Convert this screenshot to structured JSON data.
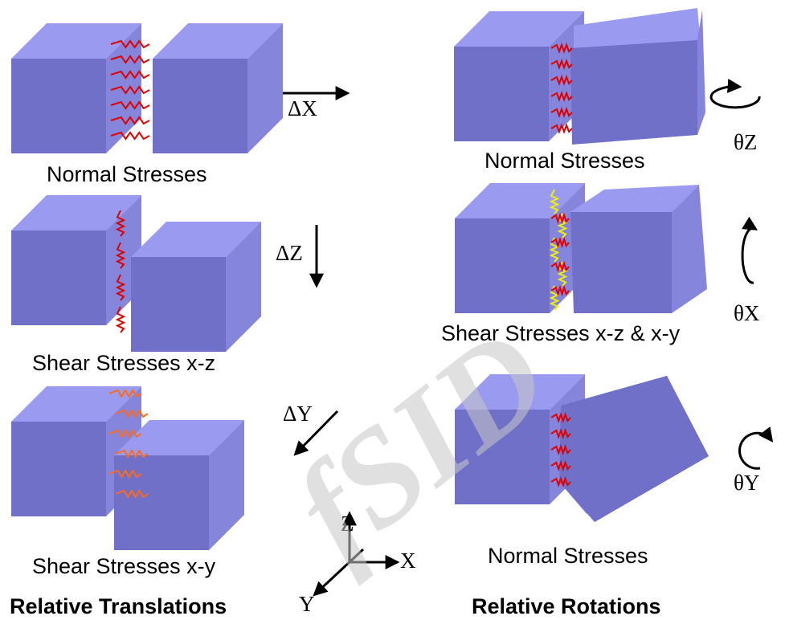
{
  "colors": {
    "cube_front": "#7070c8",
    "cube_top": "#9a9af0",
    "cube_side": "#8585dc",
    "spring_red": "#e00000",
    "spring_yellow": "#f0f000",
    "spring_orange": "#ff6a1a",
    "arrow": "#000000",
    "watermark": "#c8c8c8"
  },
  "translations": {
    "normal_label": "Normal Stresses",
    "shear_xz_label": "Shear Stresses x-z",
    "shear_xy_label": "Shear Stresses x-y",
    "dx": "ΔX",
    "dz": "ΔZ",
    "dy": "ΔY",
    "title": "Relative Translations"
  },
  "rotations": {
    "normal_z_label": "Normal Stresses",
    "shear_label": "Shear Stresses x-z & x-y",
    "normal_y_label": "Normal Stresses",
    "theta_z": "θZ",
    "theta_x": "θX",
    "theta_y": "θY",
    "title": "Relative Rotations"
  },
  "axes": {
    "z": "Z",
    "x": "X",
    "y": "Y"
  },
  "watermark": "fSID"
}
